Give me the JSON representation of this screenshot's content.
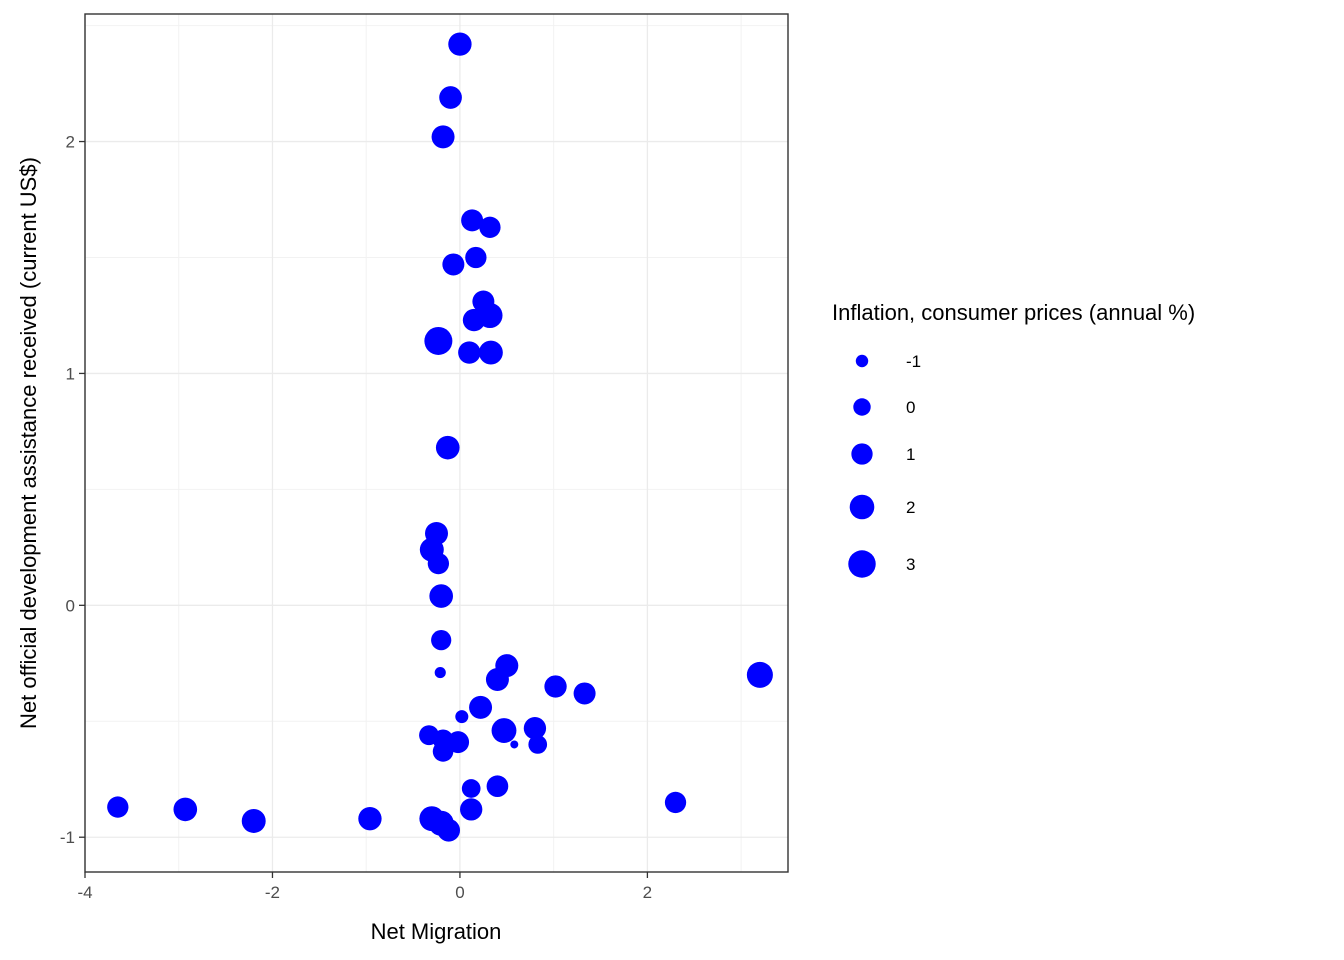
{
  "chart_data": {
    "type": "scatter",
    "xlabel": "Net Migration",
    "ylabel": "Net official development assistance received (current US$)",
    "xlim": [
      -4,
      3.5
    ],
    "ylim": [
      -1.15,
      2.55
    ],
    "x_ticks": [
      -4,
      -2,
      0,
      2
    ],
    "x_tick_labels": [
      "-4",
      "-2",
      "0",
      "2"
    ],
    "y_ticks": [
      -1,
      0,
      1,
      2
    ],
    "y_tick_labels": [
      "-1",
      "0",
      "1",
      "2"
    ],
    "grid": true,
    "color": "#0000ff",
    "legend": {
      "title": "Inflation, consumer prices (annual %)",
      "placement": "right",
      "values": [
        -1,
        0,
        1,
        2,
        3
      ],
      "labels": [
        "-1",
        "0",
        "1",
        "2",
        "3"
      ]
    },
    "size_domain": [
      -1.6,
      3.2
    ],
    "points": [
      {
        "x": 0.0,
        "y": 2.42,
        "size": 1.6
      },
      {
        "x": -0.1,
        "y": 2.19,
        "size": 1.4
      },
      {
        "x": -0.18,
        "y": 2.02,
        "size": 1.5
      },
      {
        "x": 0.13,
        "y": 1.66,
        "size": 1.2
      },
      {
        "x": 0.32,
        "y": 1.63,
        "size": 1.0
      },
      {
        "x": 0.17,
        "y": 1.5,
        "size": 1.0
      },
      {
        "x": -0.07,
        "y": 1.47,
        "size": 1.2
      },
      {
        "x": 0.25,
        "y": 1.31,
        "size": 1.2
      },
      {
        "x": 0.32,
        "y": 1.25,
        "size": 2.2
      },
      {
        "x": 0.15,
        "y": 1.23,
        "size": 1.3
      },
      {
        "x": -0.23,
        "y": 1.14,
        "size": 3.2
      },
      {
        "x": 0.1,
        "y": 1.09,
        "size": 1.3
      },
      {
        "x": 0.33,
        "y": 1.09,
        "size": 1.8
      },
      {
        "x": -0.13,
        "y": 0.68,
        "size": 1.7
      },
      {
        "x": -0.25,
        "y": 0.31,
        "size": 1.5
      },
      {
        "x": -0.3,
        "y": 0.24,
        "size": 1.8
      },
      {
        "x": -0.23,
        "y": 0.18,
        "size": 1.0
      },
      {
        "x": -0.2,
        "y": 0.04,
        "size": 1.7
      },
      {
        "x": -0.2,
        "y": -0.15,
        "size": 0.7
      },
      {
        "x": 0.5,
        "y": -0.26,
        "size": 1.5
      },
      {
        "x": -0.21,
        "y": -0.29,
        "size": -1.2
      },
      {
        "x": 0.4,
        "y": -0.32,
        "size": 1.5
      },
      {
        "x": 1.02,
        "y": -0.35,
        "size": 1.3
      },
      {
        "x": 1.33,
        "y": -0.38,
        "size": 1.2
      },
      {
        "x": 3.2,
        "y": -0.3,
        "size": 2.5
      },
      {
        "x": 0.22,
        "y": -0.44,
        "size": 1.5
      },
      {
        "x": 0.02,
        "y": -0.48,
        "size": -0.9
      },
      {
        "x": 0.47,
        "y": -0.54,
        "size": 2.1
      },
      {
        "x": 0.8,
        "y": -0.53,
        "size": 1.3
      },
      {
        "x": -0.33,
        "y": -0.56,
        "size": 0.6
      },
      {
        "x": -0.18,
        "y": -0.58,
        "size": 0.8
      },
      {
        "x": -0.02,
        "y": -0.59,
        "size": 1.2
      },
      {
        "x": 0.58,
        "y": -0.6,
        "size": -1.6
      },
      {
        "x": 0.83,
        "y": -0.6,
        "size": 0.3
      },
      {
        "x": -0.18,
        "y": -0.63,
        "size": 0.8
      },
      {
        "x": 0.12,
        "y": -0.79,
        "size": 0.3
      },
      {
        "x": 0.4,
        "y": -0.78,
        "size": 1.1
      },
      {
        "x": 2.3,
        "y": -0.85,
        "size": 1.0
      },
      {
        "x": -3.65,
        "y": -0.87,
        "size": 1.0
      },
      {
        "x": -2.93,
        "y": -0.88,
        "size": 1.7
      },
      {
        "x": 0.12,
        "y": -0.88,
        "size": 1.3
      },
      {
        "x": -2.2,
        "y": -0.93,
        "size": 1.8
      },
      {
        "x": -0.96,
        "y": -0.92,
        "size": 1.6
      },
      {
        "x": -0.3,
        "y": -0.92,
        "size": 2.1
      },
      {
        "x": -0.2,
        "y": -0.94,
        "size": 2.2
      },
      {
        "x": -0.12,
        "y": -0.97,
        "size": 1.4
      }
    ]
  }
}
